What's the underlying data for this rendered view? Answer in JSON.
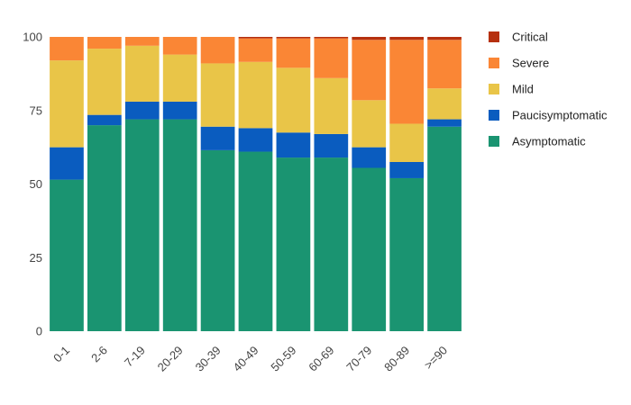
{
  "chart_data": {
    "type": "bar",
    "stacked": true,
    "categories": [
      "0-1",
      "2-6",
      "7-19",
      "20-29",
      "30-39",
      "40-49",
      "50-59",
      "60-69",
      "70-79",
      "80-89",
      ">=90"
    ],
    "ylim": [
      0,
      100
    ],
    "yticks": [
      0,
      25,
      50,
      75,
      100
    ],
    "grid": false,
    "legend_position": "right",
    "series": [
      {
        "name": "Asymptomatic",
        "color": "#1a9471",
        "values": [
          51.5,
          70,
          72,
          72,
          61.5,
          61,
          59,
          59,
          55.5,
          52,
          69.5
        ]
      },
      {
        "name": "Paucisymptomatic",
        "color": "#0a5cbf",
        "values": [
          11,
          3.5,
          6,
          6,
          8,
          8,
          8.5,
          8,
          7,
          5.5,
          2.5
        ]
      },
      {
        "name": "Mild",
        "color": "#e9c548",
        "values": [
          29.5,
          22.5,
          19,
          16,
          21.5,
          22.5,
          22,
          19,
          16,
          13,
          10.5
        ]
      },
      {
        "name": "Severe",
        "color": "#fa8635",
        "values": [
          8,
          4,
          3,
          6,
          9,
          8,
          10,
          13.5,
          20.5,
          28.5,
          16.5
        ]
      },
      {
        "name": "Critical",
        "color": "#b6300f",
        "values": [
          0,
          0,
          0,
          0,
          0,
          0.5,
          0.5,
          0.5,
          1,
          1,
          1
        ]
      }
    ],
    "legend_order": [
      "Critical",
      "Severe",
      "Mild",
      "Paucisymptomatic",
      "Asymptomatic"
    ]
  }
}
